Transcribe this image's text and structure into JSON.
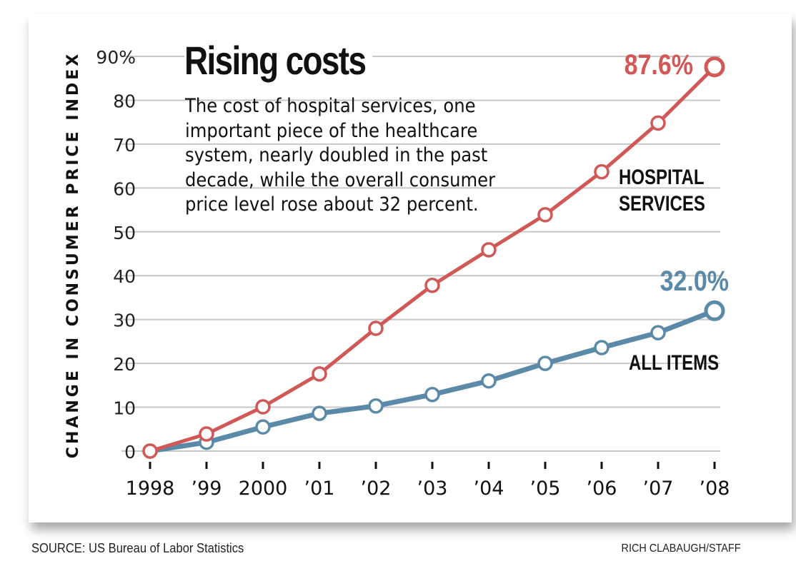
{
  "chart_data": {
    "type": "line",
    "title": "Rising costs",
    "subtitle": "The cost of hospital services, one important piece of the healthcare system, nearly doubled in the past decade, while the overall consumer price level rose about 32 percent.",
    "xlabel": "",
    "ylabel": "CHANGE IN CONSUMER PRICE INDEX",
    "categories": [
      "1998",
      "’99",
      "2000",
      "’01",
      "’02",
      "’03",
      "’04",
      "’05",
      "’06",
      "’07",
      "’08"
    ],
    "y_ticks": [
      "0",
      "10",
      "20",
      "30",
      "40",
      "50",
      "60",
      "70",
      "80",
      "90%"
    ],
    "ylim": [
      0,
      90
    ],
    "grid": true,
    "series": [
      {
        "name": "HOSPITAL SERVICES",
        "label_lines": [
          "HOSPITAL",
          "SERVICES"
        ],
        "color": "#d25757",
        "end_label": "87.6%",
        "values": [
          0,
          3.9,
          10.1,
          17.6,
          28.0,
          37.8,
          45.9,
          53.9,
          63.7,
          74.8,
          87.6
        ]
      },
      {
        "name": "ALL ITEMS",
        "label_lines": [
          "ALL ITEMS"
        ],
        "color": "#5a8aa8",
        "end_label": "32.0%",
        "values": [
          0,
          2.0,
          5.5,
          8.6,
          10.3,
          12.9,
          16.0,
          20.0,
          23.6,
          27.0,
          32.0
        ]
      }
    ]
  },
  "footer": {
    "source": "SOURCE: US Bureau of Labor Statistics",
    "credit": "RICH CLABAUGH/STAFF"
  }
}
